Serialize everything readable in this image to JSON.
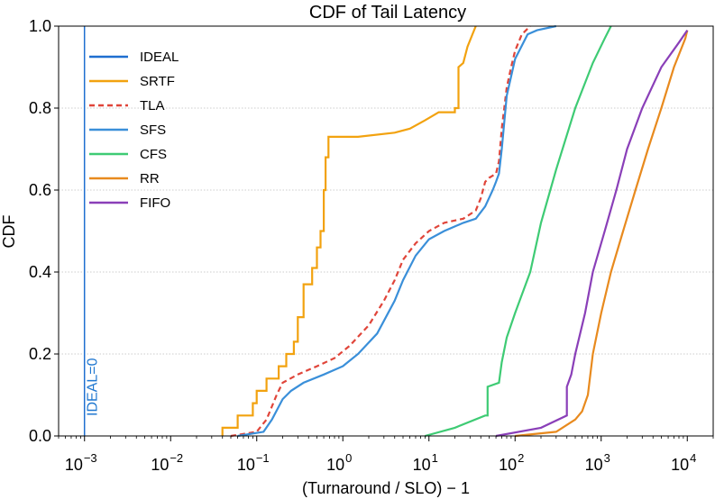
{
  "chart_data": {
    "type": "line",
    "title": "CDF of Tail Latency",
    "xlabel": "(Turnaround / SLO) − 1",
    "ylabel": "CDF",
    "x_scale": "log",
    "xlim": [
      0.0005,
      20000
    ],
    "ylim": [
      0,
      1
    ],
    "x_ticks": [
      {
        "value": 0.001,
        "base": "10",
        "exp": "−3"
      },
      {
        "value": 0.01,
        "base": "10",
        "exp": "−2"
      },
      {
        "value": 0.1,
        "base": "10",
        "exp": "−1"
      },
      {
        "value": 1,
        "base": "10",
        "exp": "0"
      },
      {
        "value": 10,
        "base": "10",
        "exp": "1"
      },
      {
        "value": 100,
        "base": "10",
        "exp": "2"
      },
      {
        "value": 1000,
        "base": "10",
        "exp": "3"
      },
      {
        "value": 10000,
        "base": "10",
        "exp": "4"
      }
    ],
    "y_ticks": [
      "0.0",
      "0.2",
      "0.4",
      "0.6",
      "0.8",
      "1.0"
    ],
    "y_tick_values": [
      0,
      0.2,
      0.4,
      0.6,
      0.8,
      1.0
    ],
    "grid": "horizontal dotted",
    "legend_position": "upper-left",
    "annotation": {
      "text": "IDEAL=0",
      "x": 0.001,
      "color": "#1f77d0"
    },
    "series": [
      {
        "name": "IDEAL",
        "color": "#1f6fd0",
        "dash": false,
        "points": [
          [
            0.001,
            0
          ],
          [
            0.001,
            1
          ]
        ]
      },
      {
        "name": "SRTF",
        "color": "#f2a20f",
        "dash": false,
        "points": [
          [
            0.04,
            0
          ],
          [
            0.04,
            0.02
          ],
          [
            0.06,
            0.02
          ],
          [
            0.06,
            0.05
          ],
          [
            0.09,
            0.05
          ],
          [
            0.09,
            0.08
          ],
          [
            0.1,
            0.08
          ],
          [
            0.1,
            0.11
          ],
          [
            0.13,
            0.11
          ],
          [
            0.13,
            0.14
          ],
          [
            0.18,
            0.14
          ],
          [
            0.18,
            0.17
          ],
          [
            0.22,
            0.17
          ],
          [
            0.22,
            0.2
          ],
          [
            0.27,
            0.2
          ],
          [
            0.27,
            0.23
          ],
          [
            0.3,
            0.23
          ],
          [
            0.3,
            0.29
          ],
          [
            0.35,
            0.29
          ],
          [
            0.35,
            0.37
          ],
          [
            0.44,
            0.37
          ],
          [
            0.44,
            0.41
          ],
          [
            0.5,
            0.41
          ],
          [
            0.5,
            0.46
          ],
          [
            0.55,
            0.46
          ],
          [
            0.55,
            0.5
          ],
          [
            0.6,
            0.5
          ],
          [
            0.6,
            0.6
          ],
          [
            0.63,
            0.6
          ],
          [
            0.63,
            0.68
          ],
          [
            0.68,
            0.68
          ],
          [
            0.68,
            0.73
          ],
          [
            1.5,
            0.73
          ],
          [
            4,
            0.74
          ],
          [
            6,
            0.75
          ],
          [
            9,
            0.77
          ],
          [
            13,
            0.79
          ],
          [
            20,
            0.79
          ],
          [
            20,
            0.8
          ],
          [
            22,
            0.8
          ],
          [
            22,
            0.9
          ],
          [
            25,
            0.91
          ],
          [
            28,
            0.95
          ],
          [
            32,
            0.98
          ],
          [
            35,
            1.0
          ]
        ]
      },
      {
        "name": "TLA",
        "color": "#e0453a",
        "dash": true,
        "points": [
          [
            0.05,
            0
          ],
          [
            0.1,
            0.01
          ],
          [
            0.13,
            0.04
          ],
          [
            0.17,
            0.1
          ],
          [
            0.2,
            0.13
          ],
          [
            0.3,
            0.15
          ],
          [
            0.5,
            0.17
          ],
          [
            0.8,
            0.19
          ],
          [
            1.2,
            0.22
          ],
          [
            2,
            0.27
          ],
          [
            3,
            0.33
          ],
          [
            4,
            0.38
          ],
          [
            5,
            0.43
          ],
          [
            7,
            0.47
          ],
          [
            10,
            0.5
          ],
          [
            15,
            0.52
          ],
          [
            25,
            0.53
          ],
          [
            35,
            0.55
          ],
          [
            40,
            0.58
          ],
          [
            45,
            0.62
          ],
          [
            50,
            0.63
          ],
          [
            60,
            0.64
          ],
          [
            65,
            0.67
          ],
          [
            70,
            0.75
          ],
          [
            80,
            0.85
          ],
          [
            90,
            0.9
          ],
          [
            100,
            0.94
          ],
          [
            120,
            0.98
          ],
          [
            150,
            1.0
          ]
        ]
      },
      {
        "name": "SFS",
        "color": "#3a8fd9",
        "dash": false,
        "points": [
          [
            0.06,
            0
          ],
          [
            0.12,
            0.01
          ],
          [
            0.15,
            0.04
          ],
          [
            0.2,
            0.09
          ],
          [
            0.25,
            0.11
          ],
          [
            0.35,
            0.13
          ],
          [
            0.6,
            0.15
          ],
          [
            1,
            0.17
          ],
          [
            1.5,
            0.2
          ],
          [
            2.5,
            0.25
          ],
          [
            4,
            0.33
          ],
          [
            5,
            0.38
          ],
          [
            7,
            0.44
          ],
          [
            10,
            0.48
          ],
          [
            15,
            0.5
          ],
          [
            25,
            0.52
          ],
          [
            35,
            0.53
          ],
          [
            45,
            0.56
          ],
          [
            55,
            0.6
          ],
          [
            60,
            0.62
          ],
          [
            65,
            0.64
          ],
          [
            70,
            0.7
          ],
          [
            80,
            0.83
          ],
          [
            100,
            0.92
          ],
          [
            140,
            0.98
          ],
          [
            180,
            0.99
          ],
          [
            300,
            1.0
          ]
        ]
      },
      {
        "name": "CFS",
        "color": "#3ecb74",
        "dash": false,
        "points": [
          [
            9,
            0
          ],
          [
            20,
            0.02
          ],
          [
            45,
            0.05
          ],
          [
            48,
            0.05
          ],
          [
            48,
            0.12
          ],
          [
            65,
            0.13
          ],
          [
            70,
            0.18
          ],
          [
            80,
            0.24
          ],
          [
            100,
            0.3
          ],
          [
            150,
            0.4
          ],
          [
            200,
            0.52
          ],
          [
            300,
            0.65
          ],
          [
            500,
            0.8
          ],
          [
            800,
            0.91
          ],
          [
            1100,
            0.97
          ],
          [
            1300,
            1.0
          ]
        ]
      },
      {
        "name": "RR",
        "color": "#e88a1e",
        "dash": false,
        "points": [
          [
            100,
            0
          ],
          [
            300,
            0.01
          ],
          [
            500,
            0.04
          ],
          [
            600,
            0.06
          ],
          [
            700,
            0.1
          ],
          [
            800,
            0.2
          ],
          [
            1000,
            0.3
          ],
          [
            1300,
            0.4
          ],
          [
            1800,
            0.5
          ],
          [
            2500,
            0.6
          ],
          [
            3500,
            0.7
          ],
          [
            5000,
            0.8
          ],
          [
            7000,
            0.9
          ],
          [
            9500,
            0.97
          ],
          [
            10000,
            0.99
          ]
        ]
      },
      {
        "name": "FIFO",
        "color": "#8a3fb8",
        "dash": false,
        "points": [
          [
            60,
            0
          ],
          [
            200,
            0.02
          ],
          [
            400,
            0.05
          ],
          [
            400,
            0.12
          ],
          [
            450,
            0.15
          ],
          [
            500,
            0.2
          ],
          [
            650,
            0.3
          ],
          [
            800,
            0.4
          ],
          [
            1100,
            0.5
          ],
          [
            1500,
            0.6
          ],
          [
            2000,
            0.7
          ],
          [
            3000,
            0.8
          ],
          [
            5000,
            0.9
          ],
          [
            8000,
            0.96
          ],
          [
            10000,
            0.99
          ]
        ]
      }
    ]
  }
}
